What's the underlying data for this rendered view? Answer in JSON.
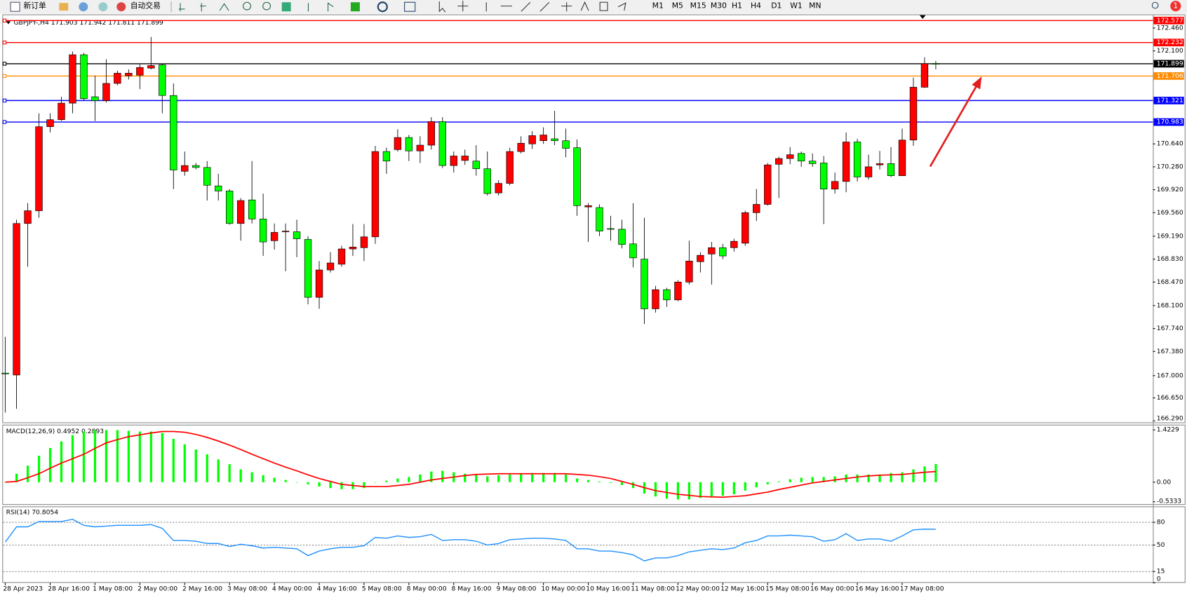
{
  "toolbar": {
    "buttons": [
      "新订单",
      "自动交易"
    ],
    "timeframes": [
      "M1",
      "M5",
      "M15",
      "M30",
      "H1",
      "H4",
      "D1",
      "W1",
      "MN"
    ],
    "badge": "1"
  },
  "chart_data": [
    {
      "type": "candlestick",
      "title": "GBPJPY-,H4  171.903 171.942 171.811 171.899",
      "categories": [
        "28 Apr 2023",
        null,
        null,
        null,
        "28 Apr 16:00",
        null,
        null,
        null,
        "1 May 08:00",
        null,
        null,
        null,
        "2 May 00:00",
        null,
        null,
        null,
        "2 May 16:00",
        null,
        null,
        null,
        "3 May 08:00",
        null,
        null,
        null,
        "4 May 00:00",
        null,
        null,
        null,
        "4 May 16:00",
        null,
        null,
        null,
        "5 May 08:00",
        null,
        null,
        null,
        "8 May 00:00",
        null,
        null,
        null,
        "8 May 16:00",
        null,
        null,
        null,
        "9 May 08:00",
        null,
        null,
        null,
        "10 May 00:00",
        null,
        null,
        null,
        "10 May 16:00",
        null,
        null,
        null,
        "11 May 08:00",
        null,
        null,
        null,
        "12 May 00:00",
        null,
        null,
        null,
        "12 May 16:00",
        null,
        null,
        null,
        "15 May 08:00",
        null,
        null,
        null,
        "16 May 00:00",
        null,
        null,
        null,
        "16 May 16:00",
        null,
        null,
        null,
        "17 May 08:00",
        null,
        null,
        null
      ],
      "open": [
        167.04,
        167.01,
        169.39,
        169.59,
        170.91,
        171.02,
        171.28,
        172.04,
        171.38,
        171.32,
        171.59,
        171.71,
        171.72,
        171.83,
        171.88,
        171.4,
        170.21,
        170.3,
        170.27,
        169.98,
        169.9,
        169.39,
        169.76,
        169.46,
        169.12,
        169.26,
        169.26,
        169.14,
        168.23,
        168.66,
        168.75,
        168.99,
        169.01,
        169.18,
        170.52,
        170.55,
        170.74,
        170.53,
        170.62,
        170.99,
        170.3,
        170.38,
        170.37,
        170.25,
        169.87,
        170.02,
        170.52,
        170.64,
        170.69,
        170.72,
        170.69,
        170.58,
        169.65,
        169.64,
        169.31,
        169.3,
        169.07,
        168.83,
        168.05,
        168.35,
        168.19,
        168.47,
        168.79,
        168.91,
        169.01,
        169.01,
        169.08,
        169.56,
        169.69,
        170.32,
        170.41,
        170.49,
        170.37,
        170.34,
        169.93,
        170.05,
        170.67,
        170.12,
        170.31,
        170.33,
        170.14,
        170.7,
        171.53,
        171.903
      ],
      "high": [
        167.61,
        169.45,
        169.71,
        171.12,
        171.12,
        171.38,
        172.09,
        172.07,
        171.71,
        171.97,
        171.79,
        171.81,
        171.89,
        172.32,
        171.9,
        171.59,
        170.52,
        170.34,
        170.37,
        170.17,
        169.93,
        169.79,
        170.37,
        169.86,
        169.39,
        169.39,
        169.45,
        169.19,
        168.8,
        168.94,
        169.04,
        169.38,
        169.38,
        170.61,
        170.58,
        170.87,
        170.78,
        170.76,
        171.06,
        171.06,
        170.52,
        170.55,
        170.62,
        170.52,
        170.07,
        170.58,
        170.76,
        170.84,
        170.9,
        171.16,
        170.88,
        170.71,
        169.71,
        169.69,
        169.51,
        169.45,
        169.71,
        169.48,
        168.41,
        168.38,
        168.5,
        169.12,
        168.94,
        169.1,
        169.07,
        169.15,
        169.59,
        169.93,
        170.34,
        170.44,
        170.59,
        170.52,
        170.49,
        170.45,
        170.19,
        170.82,
        170.72,
        170.47,
        170.53,
        170.59,
        170.88,
        171.68,
        172.0,
        171.942
      ],
      "low": [
        166.42,
        166.48,
        168.71,
        169.48,
        170.82,
        171.0,
        171.12,
        171.32,
        171.0,
        171.29,
        171.56,
        171.65,
        171.5,
        171.81,
        171.12,
        169.93,
        170.14,
        170.24,
        169.75,
        169.75,
        169.37,
        169.12,
        169.39,
        168.88,
        168.98,
        168.64,
        168.86,
        168.12,
        168.05,
        168.62,
        168.71,
        168.88,
        168.8,
        169.07,
        170.17,
        170.52,
        170.37,
        170.34,
        170.55,
        170.26,
        170.19,
        170.31,
        170.14,
        169.83,
        169.83,
        169.99,
        170.49,
        170.56,
        170.64,
        170.62,
        170.43,
        169.51,
        169.1,
        169.19,
        169.12,
        169.0,
        168.7,
        167.81,
        167.99,
        168.08,
        168.17,
        168.43,
        168.62,
        168.43,
        168.83,
        168.95,
        169.04,
        169.43,
        169.67,
        169.79,
        170.32,
        170.28,
        170.28,
        169.38,
        169.86,
        169.88,
        170.05,
        170.08,
        170.24,
        170.12,
        170.14,
        170.61,
        171.52,
        171.811
      ],
      "close": [
        167.03,
        169.39,
        169.59,
        170.91,
        171.02,
        171.28,
        172.04,
        171.35,
        171.32,
        171.59,
        171.75,
        171.75,
        171.84,
        171.87,
        171.4,
        170.23,
        170.3,
        170.27,
        169.99,
        169.9,
        169.39,
        169.75,
        169.46,
        169.1,
        169.25,
        169.27,
        169.15,
        168.23,
        168.66,
        168.77,
        168.99,
        169.02,
        169.18,
        170.52,
        170.37,
        170.74,
        170.53,
        170.62,
        170.99,
        170.3,
        170.45,
        170.45,
        170.25,
        169.86,
        170.02,
        170.52,
        170.65,
        170.77,
        170.78,
        170.69,
        170.57,
        169.67,
        169.67,
        169.27,
        169.3,
        169.06,
        168.85,
        168.05,
        168.35,
        168.19,
        168.47,
        168.8,
        168.89,
        169.01,
        168.88,
        169.11,
        169.56,
        169.69,
        170.31,
        170.41,
        170.47,
        170.37,
        170.33,
        169.93,
        170.05,
        170.67,
        170.12,
        170.28,
        170.33,
        170.14,
        170.7,
        171.53,
        171.9,
        171.899
      ],
      "up_color": "#ff0000",
      "down_color": "#00ff00",
      "ylim": [
        166.266,
        172.662
      ],
      "yticks": [
        {
          "value": 172.46,
          "label": "172.460"
        },
        {
          "value": 172.1,
          "label": "172.100"
        },
        {
          "value": 170.64,
          "label": "170.640"
        },
        {
          "value": 170.28,
          "label": "170.280"
        },
        {
          "value": 169.92,
          "label": "169.920"
        },
        {
          "value": 169.56,
          "label": "169.560"
        },
        {
          "value": 169.19,
          "label": "169.190"
        },
        {
          "value": 168.83,
          "label": "168.830"
        },
        {
          "value": 168.47,
          "label": "168.470"
        },
        {
          "value": 168.1,
          "label": "168.100"
        },
        {
          "value": 167.74,
          "label": "167.740"
        },
        {
          "value": 167.38,
          "label": "167.380"
        },
        {
          "value": 167.0,
          "label": "167.000"
        },
        {
          "value": 166.65,
          "label": "166.650"
        },
        {
          "value": 166.29,
          "label": "166.290"
        }
      ],
      "levels": [
        {
          "value": 172.577,
          "label": "172.577",
          "color": "#ff0000"
        },
        {
          "value": 172.232,
          "label": "172.232",
          "color": "#ff0000"
        },
        {
          "value": 171.899,
          "label": "171.899",
          "color": "#000000"
        },
        {
          "value": 171.706,
          "label": "171.706",
          "color": "#ff8c00"
        },
        {
          "value": 171.321,
          "label": "171.321",
          "color": "#0000ff"
        },
        {
          "value": 170.983,
          "label": "170.983",
          "color": "#0000ff"
        }
      ]
    },
    {
      "type": "macd",
      "title": "MACD(12,26,9) 0.4952 0.2893",
      "bars": [
        0.0,
        0.23,
        0.45,
        0.72,
        0.93,
        1.11,
        1.28,
        1.38,
        1.42,
        1.42,
        1.42,
        1.4,
        1.38,
        1.38,
        1.34,
        1.18,
        1.03,
        0.89,
        0.76,
        0.62,
        0.49,
        0.35,
        0.27,
        0.19,
        0.12,
        0.06,
        0.0,
        -0.06,
        -0.12,
        -0.16,
        -0.19,
        -0.19,
        -0.16,
        0.0,
        0.04,
        0.1,
        0.14,
        0.21,
        0.29,
        0.31,
        0.27,
        0.23,
        0.21,
        0.16,
        0.19,
        0.21,
        0.23,
        0.25,
        0.25,
        0.25,
        0.21,
        0.1,
        0.06,
        0.02,
        -0.02,
        -0.08,
        -0.16,
        -0.31,
        -0.39,
        -0.45,
        -0.47,
        -0.47,
        -0.43,
        -0.39,
        -0.37,
        -0.33,
        -0.23,
        -0.14,
        -0.06,
        0.02,
        0.08,
        0.12,
        0.14,
        0.14,
        0.16,
        0.21,
        0.21,
        0.21,
        0.21,
        0.25,
        0.27,
        0.35,
        0.43,
        0.4952
      ],
      "bar_color": "#00ff00",
      "line": [
        0.0,
        0.02,
        0.12,
        0.23,
        0.38,
        0.52,
        0.64,
        0.76,
        0.92,
        1.07,
        1.16,
        1.24,
        1.29,
        1.34,
        1.38,
        1.38,
        1.36,
        1.3,
        1.22,
        1.12,
        1.01,
        0.89,
        0.76,
        0.64,
        0.52,
        0.41,
        0.31,
        0.2,
        0.1,
        0.02,
        -0.06,
        -0.09,
        -0.12,
        -0.12,
        -0.12,
        -0.09,
        -0.06,
        0.0,
        0.06,
        0.1,
        0.14,
        0.18,
        0.21,
        0.22,
        0.23,
        0.23,
        0.23,
        0.23,
        0.23,
        0.23,
        0.23,
        0.21,
        0.19,
        0.15,
        0.1,
        0.02,
        -0.06,
        -0.15,
        -0.23,
        -0.28,
        -0.33,
        -0.36,
        -0.39,
        -0.4,
        -0.41,
        -0.39,
        -0.37,
        -0.32,
        -0.27,
        -0.2,
        -0.14,
        -0.08,
        -0.02,
        0.02,
        0.06,
        0.1,
        0.14,
        0.17,
        0.19,
        0.2,
        0.21,
        0.24,
        0.27,
        0.2893
      ],
      "line_color": "#ff0000",
      "ylim": [
        -0.619,
        1.546
      ],
      "yticks": [
        {
          "value": 1.4229,
          "label": "1.4229"
        },
        {
          "value": 0,
          "label": "0.00"
        },
        {
          "value": -0.5333,
          "label": "-0.5333"
        }
      ]
    },
    {
      "type": "line",
      "title": "RSI(14) 70.8054",
      "values": [
        54,
        74,
        74,
        81,
        81,
        81,
        84,
        76,
        74,
        75,
        76,
        76,
        76,
        77,
        72,
        56,
        56,
        55,
        52,
        52,
        48,
        51,
        49,
        46,
        47,
        46,
        45,
        36,
        42,
        45,
        47,
        47,
        49,
        60,
        59,
        62,
        60,
        61,
        64,
        56,
        57,
        57,
        55,
        50,
        52,
        57,
        58,
        59,
        59,
        58,
        56,
        45,
        45,
        42,
        42,
        40,
        37,
        29,
        33,
        33,
        36,
        41,
        43,
        45,
        44,
        46,
        53,
        56,
        62,
        62,
        63,
        62,
        61,
        55,
        57,
        65,
        56,
        58,
        58,
        55,
        62,
        70,
        71,
        70.8054
      ],
      "color": "#1e90ff",
      "ylim": [
        0,
        100
      ],
      "yticks": [
        80,
        50,
        15,
        0
      ]
    }
  ]
}
